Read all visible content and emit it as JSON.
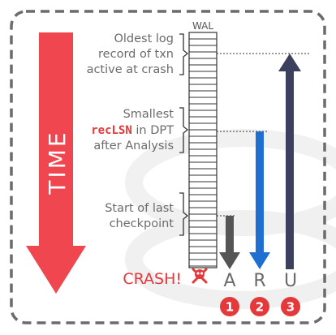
{
  "time_label": "TIME",
  "wal_label": "WAL",
  "annotations": {
    "oldest": [
      "Oldest log",
      "record of txn",
      "active at crash"
    ],
    "smallest_line1": "Smallest",
    "smallest_code": "recLSN",
    "smallest_line2_rest": " in DPT",
    "smallest_line3": "after Analysis",
    "checkpoint": [
      "Start of last",
      "checkpoint"
    ]
  },
  "crash_label": "CRASH!",
  "phases": [
    {
      "letter": "A",
      "number": "1",
      "arrow_color": "#555555"
    },
    {
      "letter": "R",
      "number": "2",
      "arrow_color": "#1f6fd1"
    },
    {
      "letter": "U",
      "number": "3",
      "arrow_color": "#3c3f5e"
    }
  ],
  "colors": {
    "time_arrow": "#f0464f",
    "accent_red": "#e5383b",
    "border": "#6b6b6b"
  }
}
